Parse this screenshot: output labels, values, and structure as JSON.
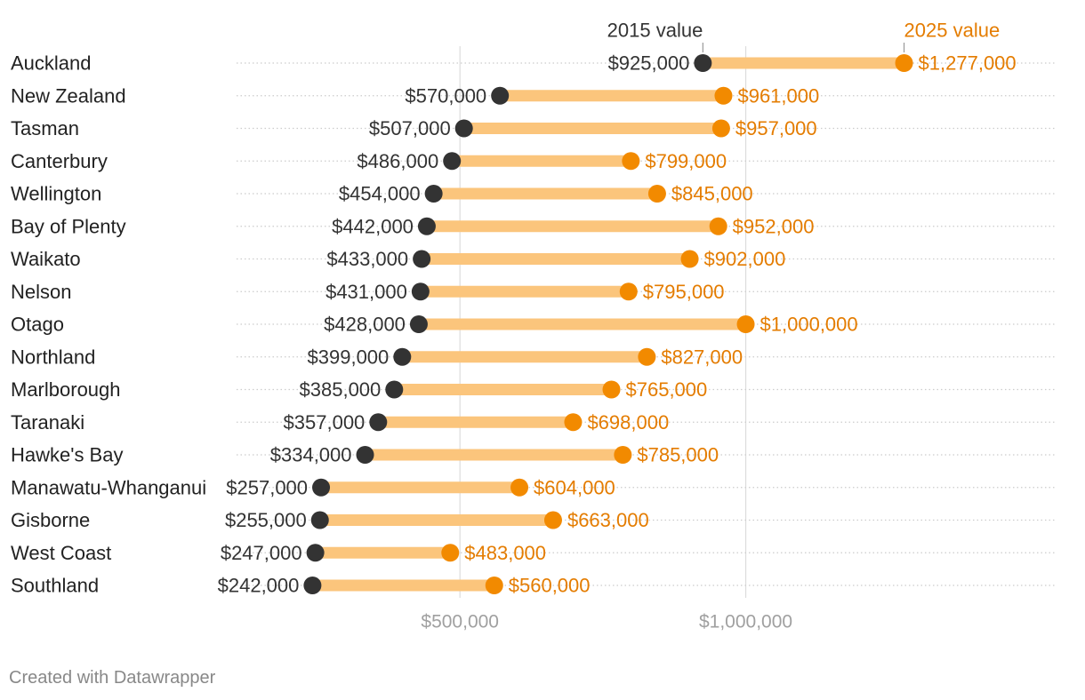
{
  "footer": "Created with Datawrapper",
  "colors": {
    "start_dot": "#333333",
    "end_dot": "#f28a00",
    "bar": "#fbc57c",
    "end_label": "#e47c00",
    "axis_label": "#a0a0a0",
    "grid": "#dddddd",
    "row_line": "#cccccc"
  },
  "chart_data": {
    "type": "range-dot",
    "title": "",
    "xlabel": "",
    "ylabel": "",
    "xlim": [
      50000,
      1550000
    ],
    "x_ticks": [
      {
        "value": 500000,
        "label": "$500,000"
      },
      {
        "value": 1000000,
        "label": "$1,000,000"
      }
    ],
    "legend": {
      "start": "2015 value",
      "end": "2025 value",
      "placement": "top"
    },
    "series": [
      {
        "name": "2015 value"
      },
      {
        "name": "2025 value"
      }
    ],
    "rows": [
      {
        "region": "Auckland",
        "v2015": 925000,
        "v2015_label": "$925,000",
        "v2025": 1277000,
        "v2025_label": "$1,277,000"
      },
      {
        "region": "New Zealand",
        "v2015": 570000,
        "v2015_label": "$570,000",
        "v2025": 961000,
        "v2025_label": "$961,000"
      },
      {
        "region": "Tasman",
        "v2015": 507000,
        "v2015_label": "$507,000",
        "v2025": 957000,
        "v2025_label": "$957,000"
      },
      {
        "region": "Canterbury",
        "v2015": 486000,
        "v2015_label": "$486,000",
        "v2025": 799000,
        "v2025_label": "$799,000"
      },
      {
        "region": "Wellington",
        "v2015": 454000,
        "v2015_label": "$454,000",
        "v2025": 845000,
        "v2025_label": "$845,000"
      },
      {
        "region": "Bay of Plenty",
        "v2015": 442000,
        "v2015_label": "$442,000",
        "v2025": 952000,
        "v2025_label": "$952,000"
      },
      {
        "region": "Waikato",
        "v2015": 433000,
        "v2015_label": "$433,000",
        "v2025": 902000,
        "v2025_label": "$902,000"
      },
      {
        "region": "Nelson",
        "v2015": 431000,
        "v2015_label": "$431,000",
        "v2025": 795000,
        "v2025_label": "$795,000"
      },
      {
        "region": "Otago",
        "v2015": 428000,
        "v2015_label": "$428,000",
        "v2025": 1000000,
        "v2025_label": "$1,000,000"
      },
      {
        "region": "Northland",
        "v2015": 399000,
        "v2015_label": "$399,000",
        "v2025": 827000,
        "v2025_label": "$827,000"
      },
      {
        "region": "Marlborough",
        "v2015": 385000,
        "v2015_label": "$385,000",
        "v2025": 765000,
        "v2025_label": "$765,000"
      },
      {
        "region": "Taranaki",
        "v2015": 357000,
        "v2015_label": "$357,000",
        "v2025": 698000,
        "v2025_label": "$698,000"
      },
      {
        "region": "Hawke's Bay",
        "v2015": 334000,
        "v2015_label": "$334,000",
        "v2025": 785000,
        "v2025_label": "$785,000"
      },
      {
        "region": "Manawatu-Whanganui",
        "v2015": 257000,
        "v2015_label": "$257,000",
        "v2025": 604000,
        "v2025_label": "$604,000"
      },
      {
        "region": "Gisborne",
        "v2015": 255000,
        "v2015_label": "$255,000",
        "v2025": 663000,
        "v2025_label": "$663,000"
      },
      {
        "region": "West Coast",
        "v2015": 247000,
        "v2015_label": "$247,000",
        "v2025": 483000,
        "v2025_label": "$483,000"
      },
      {
        "region": "Southland",
        "v2015": 242000,
        "v2015_label": "$242,000",
        "v2025": 560000,
        "v2025_label": "$560,000"
      }
    ]
  }
}
